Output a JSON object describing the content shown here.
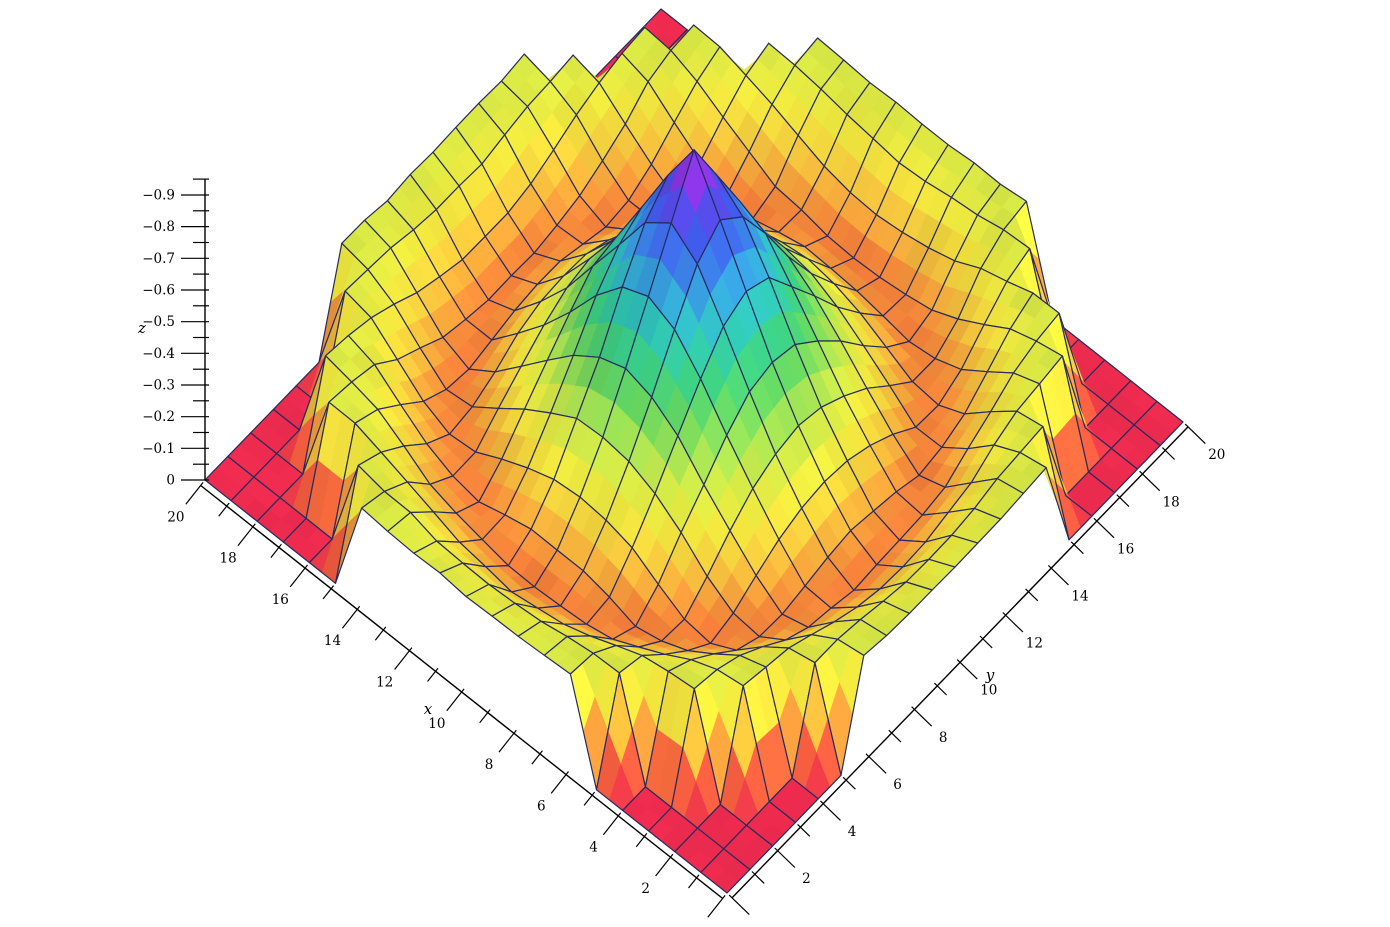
{
  "figure": {
    "background": "#ffffff",
    "kind": "3D surface plot (rainbow height-colored mesh, orthographic view)"
  },
  "chart_data": {
    "type": "surface3d",
    "title": "",
    "x_axis": {
      "label": "x",
      "min": 0,
      "max": 20,
      "major_tick_step": 2,
      "minor_tick_step": 1,
      "tick_labels": [
        "2",
        "4",
        "6",
        "8",
        "10",
        "12",
        "14",
        "16",
        "18",
        "20"
      ]
    },
    "y_axis": {
      "label": "y",
      "min": 0,
      "max": 20,
      "major_tick_step": 2,
      "minor_tick_step": 1,
      "tick_labels": [
        "2",
        "4",
        "6",
        "8",
        "10",
        "12",
        "14",
        "16",
        "18",
        "20"
      ]
    },
    "z_axis": {
      "label": "z",
      "min": -0.95,
      "max": 0,
      "major_tick_step": 0.1,
      "minor_tick_step": 0.05,
      "tick_labels": [
        "0",
        "−0.1",
        "−0.2",
        "−0.3",
        "−0.4",
        "−0.5",
        "−0.6",
        "−0.7",
        "−0.8",
        "−0.9"
      ]
    },
    "surface": {
      "grid_step": 1,
      "grid_points": 21,
      "center": [
        10,
        10
      ],
      "clip_radius": 10.8,
      "z_outside_clip": 0,
      "radial_profile_r": [
        0,
        0.5,
        1,
        1.5,
        2,
        2.5,
        3,
        3.5,
        4,
        4.5,
        5,
        5.5,
        6,
        6.5,
        6.8,
        7,
        7.5,
        8,
        8.5,
        9,
        9.5,
        10,
        10.8
      ],
      "radial_profile_z": [
        -0.95,
        -0.88,
        -0.8,
        -0.715,
        -0.64,
        -0.555,
        -0.48,
        -0.41,
        -0.345,
        -0.285,
        -0.23,
        -0.18,
        -0.135,
        -0.1,
        -0.09,
        -0.092,
        -0.115,
        -0.155,
        -0.2,
        -0.245,
        -0.275,
        -0.29,
        -0.3
      ],
      "description": "Radially symmetric central spike with a damped ring trough (z≈−0.09 at r≈6.8) and outer ridge (z≈−0.30 at r≈10); surface drops discontinuously to z=0 (flat red) outside clip radius, leaving flat corner/edge regions of the square domain."
    },
    "colormap": {
      "name": "rainbow by z (red at 0 → magenta at −0.95)",
      "stops": [
        {
          "z": 0.0,
          "color": "#ed2b4f"
        },
        {
          "z": -0.05,
          "color": "#f0583f"
        },
        {
          "z": -0.095,
          "color": "#f3773a"
        },
        {
          "z": -0.14,
          "color": "#f5a83c"
        },
        {
          "z": -0.19,
          "color": "#f2cf3e"
        },
        {
          "z": -0.24,
          "color": "#efe73e"
        },
        {
          "z": -0.3,
          "color": "#d4e746"
        },
        {
          "z": -0.36,
          "color": "#a4df52"
        },
        {
          "z": -0.43,
          "color": "#66d25e"
        },
        {
          "z": -0.5,
          "color": "#3cca7e"
        },
        {
          "z": -0.57,
          "color": "#2fc4ad"
        },
        {
          "z": -0.63,
          "color": "#33b4d2"
        },
        {
          "z": -0.7,
          "color": "#3a85e2"
        },
        {
          "z": -0.77,
          "color": "#4058e8"
        },
        {
          "z": -0.83,
          "color": "#5c44e2"
        },
        {
          "z": -0.89,
          "color": "#9030dd"
        },
        {
          "z": -0.95,
          "color": "#d81ed0"
        }
      ],
      "mesh_line_color": "#272b5e",
      "axis_line_color": "#000000"
    }
  }
}
